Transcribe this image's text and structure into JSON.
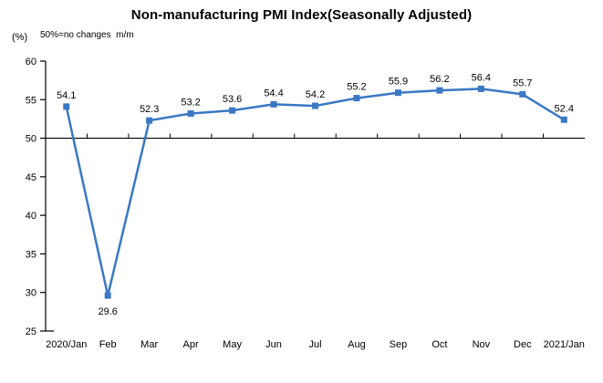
{
  "header": {
    "title": "Non-manufacturing PMI Index(Seasonally Adjusted)",
    "unit_label": "(%)",
    "note": "50%=no changes  m/m"
  },
  "chart_data": {
    "type": "line",
    "title": "Non-manufacturing PMI Index(Seasonally Adjusted)",
    "categories": [
      "2020/Jan",
      "Feb",
      "Mar",
      "Apr",
      "May",
      "Jun",
      "Jul",
      "Aug",
      "Sep",
      "Oct",
      "Nov",
      "Dec",
      "2021/Jan"
    ],
    "values": [
      54.1,
      29.6,
      52.3,
      53.2,
      53.6,
      54.4,
      54.2,
      55.2,
      55.9,
      56.2,
      56.4,
      55.7,
      52.4
    ],
    "xlabel": "",
    "ylabel": "(%)",
    "ylim": [
      25,
      60
    ],
    "ytick_step": 5,
    "baseline": 50,
    "grid": false,
    "legend_position": "none",
    "line_color": "#3A78C4",
    "marker": "square",
    "axis_color": "#000000",
    "label_color": "#000000"
  }
}
